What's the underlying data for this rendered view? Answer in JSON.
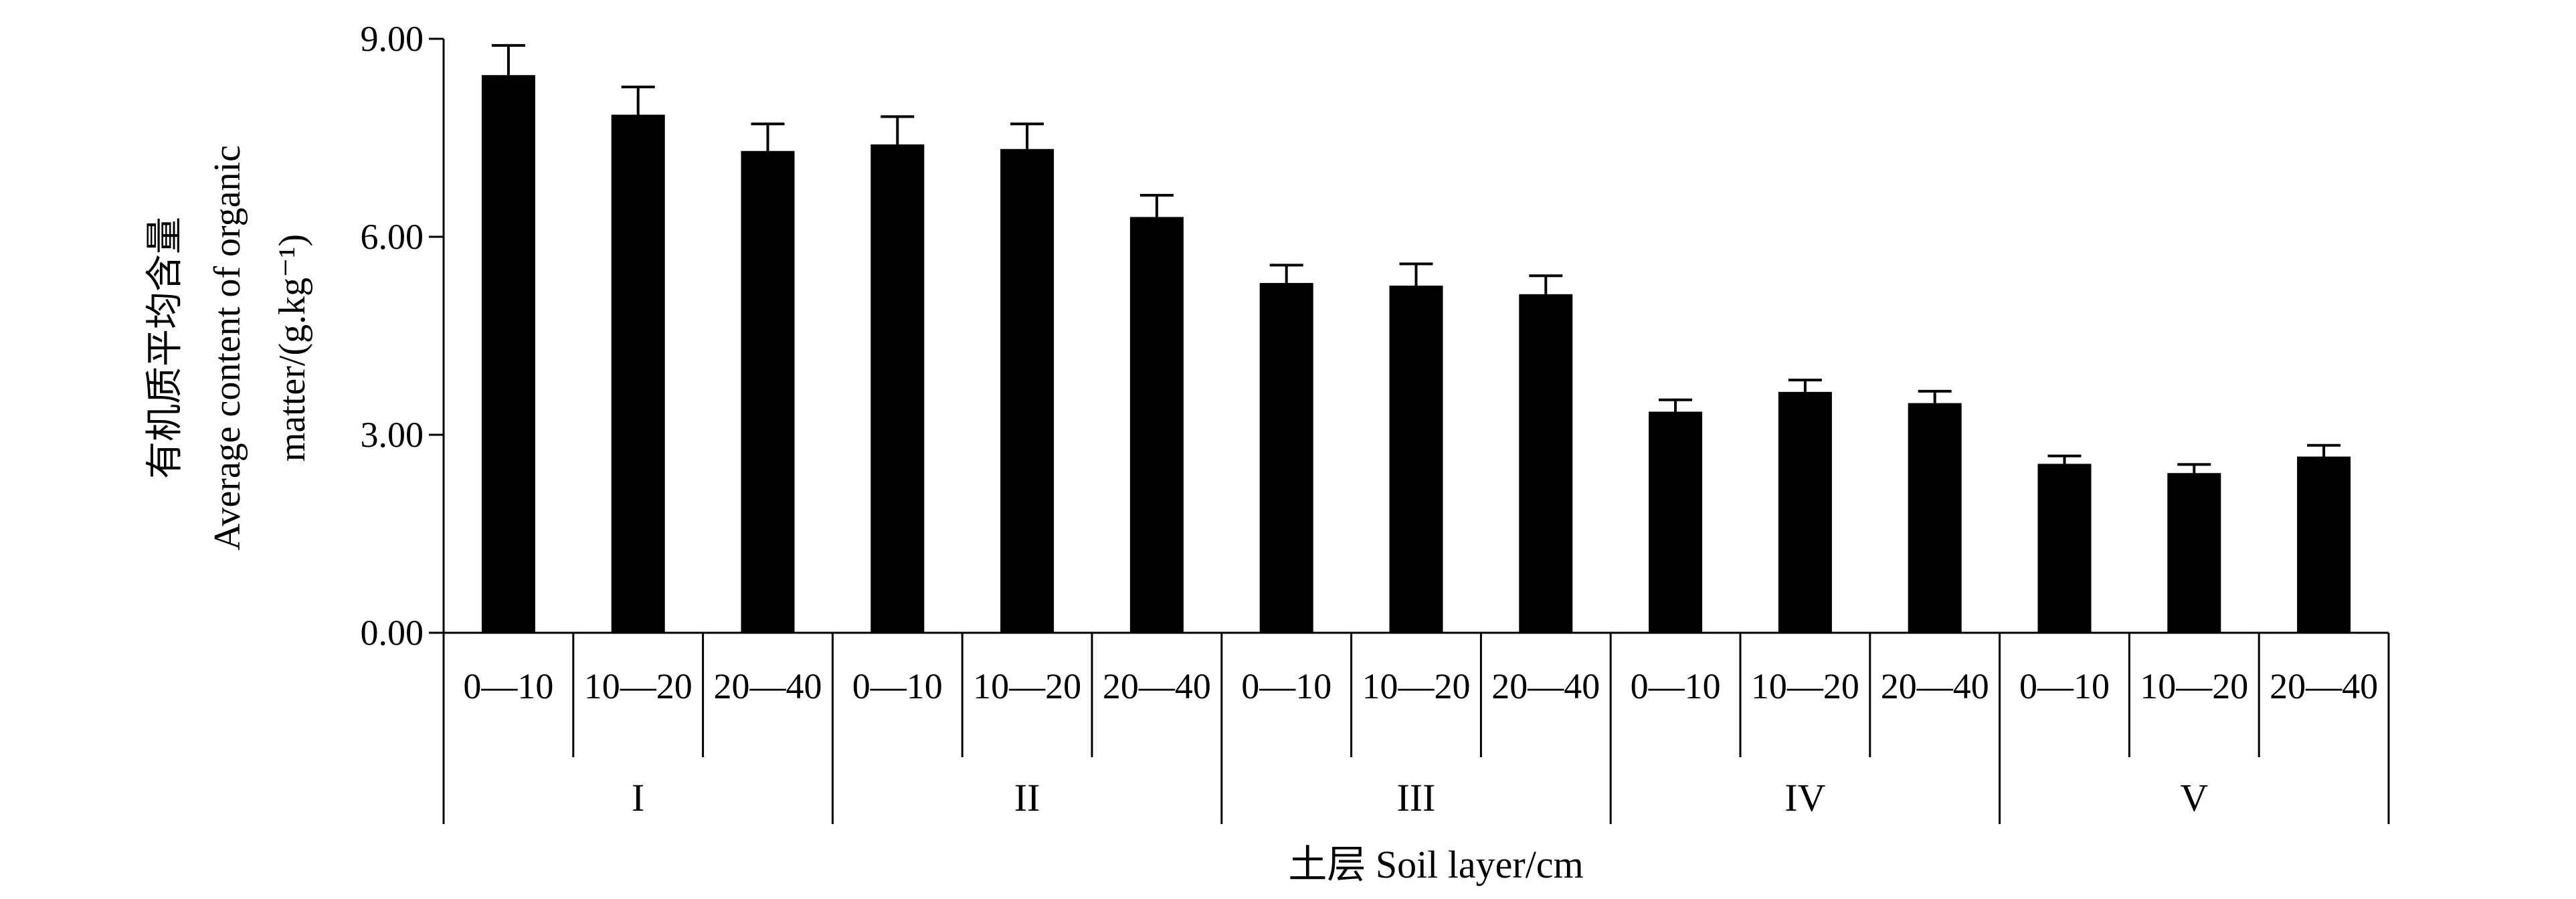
{
  "chart_data": {
    "type": "bar",
    "ylabel_lines": [
      "有机质平均含量",
      "Average content of organic",
      "matter/(g.kg⁻¹)"
    ],
    "xlabel": "土层 Soil layer/cm",
    "ylim": [
      0,
      9
    ],
    "yticks": [
      "0.00",
      "3.00",
      "6.00",
      "9.00"
    ],
    "groups": [
      "I",
      "II",
      "III",
      "IV",
      "V"
    ],
    "categories": [
      "0—10",
      "10—20",
      "20—40",
      "0—10",
      "10—20",
      "20—40",
      "0—10",
      "10—20",
      "20—40",
      "0—10",
      "10—20",
      "20—40",
      "0—10",
      "10—20",
      "20—40"
    ],
    "values": [
      8.45,
      7.85,
      7.3,
      7.4,
      7.33,
      6.3,
      5.3,
      5.26,
      5.13,
      3.35,
      3.65,
      3.48,
      2.56,
      2.42,
      2.67
    ],
    "errors": [
      0.45,
      0.42,
      0.41,
      0.42,
      0.38,
      0.33,
      0.27,
      0.33,
      0.28,
      0.18,
      0.18,
      0.18,
      0.12,
      0.13,
      0.17
    ],
    "bar_color": "#000000",
    "grid": false,
    "legend": "none"
  }
}
